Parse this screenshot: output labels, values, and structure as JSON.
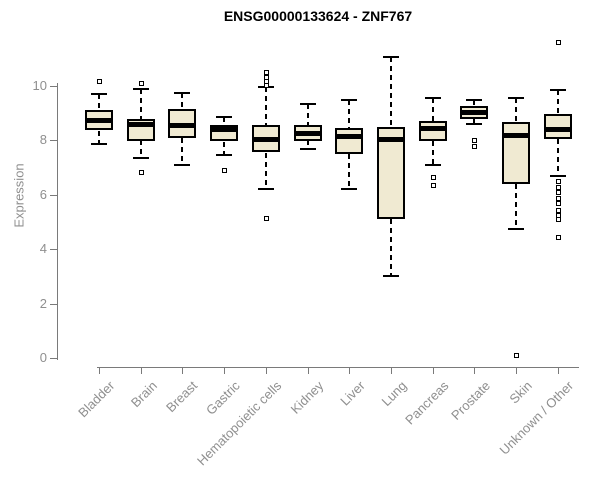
{
  "title": "ENSG00000133624 - ZNF767",
  "colors": {
    "background": "#ffffff",
    "box_fill": "#F0EAD2",
    "box_stroke": "#000000",
    "axis_line": "#7a7a7a",
    "axis_label": "#8f8f8f",
    "title_color": "#000000"
  },
  "chart_data": {
    "type": "boxplot",
    "title": "ENSG00000133624 - ZNF767",
    "xlabel": "",
    "ylabel": "Expression",
    "ylim": [
      0,
      11.7
    ],
    "yticks": [
      0,
      2,
      4,
      6,
      8,
      10
    ],
    "grid": "off",
    "categories": [
      "Bladder",
      "Brain",
      "Breast",
      "Gastric",
      "Hematopoietic cells",
      "Kidney",
      "Liver",
      "Lung",
      "Pancreas",
      "Prostate",
      "Skin",
      "Unknown / Other"
    ],
    "series": [
      {
        "name": "Bladder",
        "whisker_low": 7.85,
        "q1": 8.35,
        "median": 8.75,
        "q3": 9.1,
        "whisker_high": 9.7,
        "outliers": [
          10.2
        ]
      },
      {
        "name": "Brain",
        "whisker_low": 7.35,
        "q1": 8.0,
        "median": 8.62,
        "q3": 8.8,
        "whisker_high": 9.9,
        "outliers": [
          10.1,
          6.85
        ]
      },
      {
        "name": "Breast",
        "whisker_low": 7.1,
        "q1": 8.1,
        "median": 8.57,
        "q3": 9.15,
        "whisker_high": 9.75,
        "outliers": []
      },
      {
        "name": "Gastric",
        "whisker_low": 7.45,
        "q1": 7.95,
        "median": 8.42,
        "q3": 8.55,
        "whisker_high": 8.85,
        "outliers": [
          6.9
        ]
      },
      {
        "name": "Hematopoietic cells",
        "whisker_low": 6.2,
        "q1": 7.55,
        "median": 8.05,
        "q3": 8.55,
        "whisker_high": 9.95,
        "outliers": [
          10.5,
          10.33,
          10.18,
          10.03,
          5.15
        ]
      },
      {
        "name": "Kidney",
        "whisker_low": 7.7,
        "q1": 8.0,
        "median": 8.27,
        "q3": 8.57,
        "whisker_high": 9.35,
        "outliers": []
      },
      {
        "name": "Liver",
        "whisker_low": 6.2,
        "q1": 7.5,
        "median": 8.17,
        "q3": 8.47,
        "whisker_high": 9.5,
        "outliers": []
      },
      {
        "name": "Lung",
        "whisker_low": 3.0,
        "q1": 5.1,
        "median": 8.05,
        "q3": 8.5,
        "whisker_high": 11.05,
        "outliers": []
      },
      {
        "name": "Pancreas",
        "whisker_low": 7.1,
        "q1": 7.98,
        "median": 8.45,
        "q3": 8.7,
        "whisker_high": 9.55,
        "outliers": [
          6.65,
          6.35
        ]
      },
      {
        "name": "Prostate",
        "whisker_low": 8.6,
        "q1": 8.8,
        "median": 9.05,
        "q3": 9.27,
        "whisker_high": 9.5,
        "outliers": [
          8.0,
          7.78
        ]
      },
      {
        "name": "Skin",
        "whisker_low": 4.75,
        "q1": 6.4,
        "median": 8.2,
        "q3": 8.67,
        "whisker_high": 9.55,
        "outliers": [
          0.1
        ]
      },
      {
        "name": "Unknown / Other",
        "whisker_low": 6.7,
        "q1": 8.05,
        "median": 8.42,
        "q3": 8.97,
        "whisker_high": 9.85,
        "outliers": [
          11.6,
          6.5,
          6.3,
          6.1,
          5.9,
          5.7,
          5.45,
          5.25,
          5.1,
          4.45
        ]
      }
    ]
  }
}
